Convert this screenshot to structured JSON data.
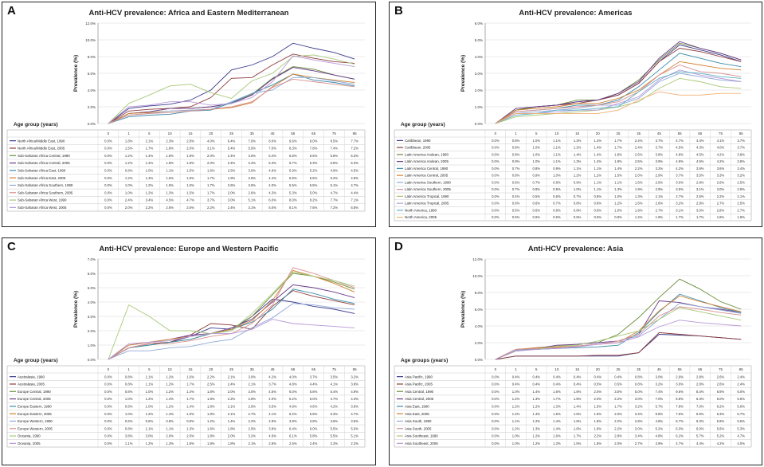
{
  "chart_data": [
    {
      "panel": "A",
      "type": "line",
      "title": "Anti-HCV prevalence: Africa and Eastern Mediterranean",
      "ylabel": "Prevalence (%)",
      "xlabel": "Age group (years)",
      "categories": [
        "0",
        "1",
        "5",
        "10",
        "15",
        "20",
        "25",
        "35",
        "45",
        "55",
        "65",
        "75",
        "85"
      ],
      "ylim": [
        0,
        12
      ],
      "yticks": [
        "0.0%",
        "2.0%",
        "4.0%",
        "6.0%",
        "8.0%",
        "10.0%",
        "12.0%"
      ],
      "series": [
        {
          "name": "North Africa/Middle East, 1990",
          "color": "#3a3a8c",
          "values": [
            0.0,
            1.8,
            2.1,
            2.3,
            2.8,
            4.0,
            6.4,
            7.0,
            8.0,
            9.6,
            9.0,
            8.5,
            7.7
          ]
        },
        {
          "name": "North Africa/Middle East, 2005",
          "color": "#8c3a3a",
          "values": [
            0.0,
            1.5,
            1.7,
            1.8,
            2.0,
            3.1,
            5.4,
            5.5,
            7.0,
            8.3,
            7.8,
            7.4,
            7.2
          ]
        },
        {
          "name": "Sub-Saharan Africa Central, 1990",
          "color": "#6a8c3a",
          "values": [
            0.0,
            1.2,
            1.4,
            1.8,
            1.8,
            2.0,
            2.4,
            3.5,
            5.4,
            6.8,
            6.5,
            5.8,
            5.3
          ]
        },
        {
          "name": "Sub-Saharan Africa Central, 2005",
          "color": "#6a3a8c",
          "values": [
            0.0,
            1.2,
            1.4,
            1.8,
            1.8,
            2.0,
            2.4,
            3.4,
            5.3,
            6.7,
            6.3,
            5.8,
            5.3
          ]
        },
        {
          "name": "Sub-Saharan Africa East, 1990",
          "color": "#3a8caa",
          "values": [
            0.0,
            0.8,
            1.0,
            1.1,
            1.5,
            1.6,
            2.5,
            3.6,
            4.6,
            5.9,
            5.2,
            4.9,
            4.5
          ]
        },
        {
          "name": "Sub-Saharan Africa East, 2005",
          "color": "#d08030",
          "values": [
            0.0,
            1.2,
            1.3,
            1.5,
            1.6,
            1.7,
            1.9,
            2.5,
            4.4,
            5.9,
            5.5,
            5.2,
            4.9
          ]
        },
        {
          "name": "Sub-Saharan Africa Southern, 1990",
          "color": "#8fa8d8",
          "values": [
            0.0,
            1.0,
            1.2,
            1.5,
            1.6,
            1.7,
            2.6,
            3.6,
            4.0,
            5.5,
            5.5,
            5.1,
            4.7
          ]
        },
        {
          "name": "Sub-Saharan Africa Southern, 2005",
          "color": "#d88f8f",
          "values": [
            0.0,
            1.0,
            1.2,
            1.3,
            1.5,
            1.7,
            2.0,
            2.6,
            4.3,
            5.3,
            5.0,
            4.7,
            4.4
          ]
        },
        {
          "name": "Sub-Saharan Africa West, 1990",
          "color": "#a8c878",
          "values": [
            0.0,
            2.4,
            3.4,
            4.5,
            4.7,
            3.7,
            3.0,
            5.1,
            6.0,
            8.0,
            8.2,
            7.7,
            7.1
          ]
        },
        {
          "name": "Sub-Saharan Africa West, 2005",
          "color": "#b898d8",
          "values": [
            0.0,
            2.0,
            2.2,
            2.6,
            2.6,
            2.2,
            2.4,
            3.1,
            5.0,
            8.1,
            7.6,
            7.2,
            6.8
          ]
        }
      ]
    },
    {
      "panel": "B",
      "type": "line",
      "title": "Anti-HCV prevalence: Americas",
      "ylabel": "Prevalence (%)",
      "xlabel": "Age group (years)",
      "categories": [
        "0",
        "1",
        "5",
        "10",
        "15",
        "20",
        "25",
        "35",
        "45",
        "55",
        "65",
        "75",
        "85"
      ],
      "ylim": [
        0,
        6
      ],
      "yticks": [
        "0.0%",
        "1.0%",
        "2.0%",
        "3.0%",
        "4.0%",
        "5.0%",
        "6.0%"
      ],
      "series": [
        {
          "name": "Caribbean, 1990",
          "color": "#3a3a8c",
          "values": [
            0.0,
            0.8,
            1.0,
            1.1,
            1.3,
            1.4,
            1.7,
            2.4,
            3.7,
            4.7,
            4.4,
            4.1,
            3.7
          ]
        },
        {
          "name": "Caribbean, 2005",
          "color": "#8c3a3a",
          "values": [
            0.0,
            0.8,
            1.0,
            1.1,
            1.2,
            1.4,
            1.7,
            2.4,
            3.7,
            4.5,
            4.3,
            4.0,
            3.7
          ]
        },
        {
          "name": "Latin America Andean, 1990",
          "color": "#6a8c3a",
          "values": [
            0.0,
            0.8,
            1.0,
            1.1,
            1.4,
            1.4,
            1.8,
            2.6,
            3.8,
            4.8,
            4.5,
            4.2,
            3.8
          ]
        },
        {
          "name": "Latin America Andean, 2005",
          "color": "#6a3a8c",
          "values": [
            0.0,
            0.9,
            1.0,
            1.1,
            1.3,
            1.4,
            1.8,
            2.5,
            3.9,
            4.9,
            4.5,
            4.2,
            3.8
          ]
        },
        {
          "name": "Latin America Central, 1990",
          "color": "#3a8caa",
          "values": [
            0.0,
            0.7,
            0.8,
            0.9,
            1.1,
            1.1,
            1.4,
            2.2,
            3.2,
            4.2,
            3.9,
            3.6,
            3.4
          ]
        },
        {
          "name": "Latin America Central, 2005",
          "color": "#d08030",
          "values": [
            0.0,
            0.8,
            0.9,
            1.0,
            1.2,
            1.2,
            1.5,
            2.0,
            2.9,
            3.7,
            3.5,
            3.3,
            3.2
          ]
        },
        {
          "name": "Latin America Southern, 1990",
          "color": "#8fa8d8",
          "values": [
            0.0,
            0.6,
            0.7,
            0.8,
            0.9,
            1.1,
            1.1,
            1.5,
            2.5,
            3.0,
            2.8,
            2.6,
            2.5
          ]
        },
        {
          "name": "Latin America Southern, 2005",
          "color": "#d88f8f",
          "values": [
            0.0,
            0.7,
            0.8,
            0.9,
            1.0,
            1.1,
            1.3,
            1.9,
            2.9,
            3.5,
            3.1,
            3.0,
            2.8
          ]
        },
        {
          "name": "Latin America Tropical, 1990",
          "color": "#a8c878",
          "values": [
            0.0,
            0.4,
            0.5,
            0.6,
            0.7,
            0.8,
            1.0,
            1.3,
            2.1,
            2.7,
            2.5,
            2.2,
            2.1
          ]
        },
        {
          "name": "Latin America Tropical, 2005",
          "color": "#b898d8",
          "values": [
            0.0,
            0.6,
            0.6,
            0.7,
            0.8,
            0.8,
            1.2,
            1.6,
            2.6,
            3.2,
            2.9,
            2.7,
            2.5
          ]
        },
        {
          "name": "North America, 1990",
          "color": "#5ab0c8",
          "values": [
            0.0,
            0.5,
            0.6,
            0.8,
            0.8,
            0.9,
            1.0,
            1.9,
            2.7,
            3.1,
            3.0,
            2.8,
            2.7
          ]
        },
        {
          "name": "North America, 2005",
          "color": "#f0b070",
          "values": [
            0.0,
            0.6,
            0.6,
            0.6,
            0.6,
            0.6,
            0.8,
            1.4,
            1.9,
            1.7,
            1.7,
            1.8,
            1.8
          ]
        }
      ]
    },
    {
      "panel": "C",
      "type": "line",
      "title": "Anti-HCV prevalence: Europe and Western Pacific",
      "ylabel": "Prevalence (%)",
      "xlabel": "Age group (years)",
      "categories": [
        "0",
        "1",
        "5",
        "10",
        "15",
        "20",
        "25",
        "35",
        "45",
        "55",
        "65",
        "75",
        "85"
      ],
      "ylim": [
        0,
        7
      ],
      "yticks": [
        "0.0%",
        "1.0%",
        "2.0%",
        "3.0%",
        "4.0%",
        "5.0%",
        "6.0%",
        "7.0%"
      ],
      "series": [
        {
          "name": "Australasia, 1990",
          "color": "#3a3a8c",
          "values": [
            0.0,
            0.8,
            1.1,
            1.2,
            1.6,
            2.2,
            2.1,
            3.0,
            4.2,
            4.0,
            3.7,
            3.5,
            3.2
          ]
        },
        {
          "name": "Australasia, 2005",
          "color": "#8c3a3a",
          "values": [
            0.0,
            0.8,
            1.1,
            1.2,
            1.7,
            2.5,
            2.4,
            2.1,
            3.7,
            4.8,
            4.4,
            4.1,
            3.8
          ]
        },
        {
          "name": "Europe Central, 1990",
          "color": "#6a8c3a",
          "values": [
            0.0,
            0.8,
            1.0,
            1.2,
            1.4,
            1.8,
            2.0,
            3.0,
            4.5,
            6.0,
            5.8,
            5.4,
            4.9
          ]
        },
        {
          "name": "Europe Central, 2005",
          "color": "#6a3a8c",
          "values": [
            0.0,
            1.0,
            1.2,
            1.4,
            1.7,
            1.8,
            2.2,
            2.8,
            4.0,
            5.2,
            5.0,
            4.7,
            4.3
          ]
        },
        {
          "name": "Europe Eastern, 1990",
          "color": "#3a8caa",
          "values": [
            0.0,
            0.8,
            1.0,
            1.2,
            1.4,
            1.8,
            2.1,
            2.6,
            3.5,
            4.9,
            4.6,
            4.2,
            3.9
          ]
        },
        {
          "name": "Europe Eastern, 2005",
          "color": "#d08030",
          "values": [
            0.0,
            1.0,
            1.2,
            1.4,
            1.6,
            1.8,
            2.1,
            2.7,
            4.1,
            6.2,
            5.8,
            5.3,
            4.7
          ]
        },
        {
          "name": "Europe Western, 1990",
          "color": "#8fa8d8",
          "values": [
            0.0,
            0.6,
            0.6,
            0.8,
            0.9,
            1.2,
            1.4,
            2.2,
            2.9,
            3.9,
            3.8,
            3.6,
            3.5
          ]
        },
        {
          "name": "Europe Western, 2005",
          "color": "#d88f8f",
          "values": [
            0.0,
            0.8,
            1.1,
            1.1,
            1.3,
            1.6,
            1.8,
            2.5,
            3.8,
            6.4,
            6.0,
            5.5,
            5.0
          ]
        },
        {
          "name": "Oceania, 1990",
          "color": "#a8c878",
          "values": [
            0.0,
            3.8,
            3.0,
            2.0,
            2.0,
            1.8,
            2.0,
            3.2,
            4.6,
            6.1,
            5.8,
            5.5,
            5.1
          ]
        },
        {
          "name": "Oceania, 2005",
          "color": "#b898d8",
          "values": [
            0.0,
            1.1,
            1.2,
            1.3,
            1.6,
            1.8,
            1.8,
            2.1,
            2.8,
            2.5,
            2.4,
            2.3,
            2.2
          ]
        }
      ]
    },
    {
      "panel": "D",
      "type": "line",
      "title": "Anti-HCV prevalence: Asia",
      "ylabel": "Prevalence (%)",
      "xlabel": "Age groups (years)",
      "categories": [
        "0",
        "1",
        "5",
        "10",
        "15",
        "20",
        "25",
        "35",
        "45",
        "55",
        "65",
        "75",
        "85"
      ],
      "ylim": [
        0,
        12
      ],
      "yticks": [
        "0.0%",
        "2.0%",
        "4.0%",
        "6.0%",
        "8.0%",
        "10.0%",
        "12.0%"
      ],
      "series": [
        {
          "name": "Asia Pacific, 1990",
          "color": "#3a3a8c",
          "values": [
            0.0,
            0.4,
            0.4,
            0.4,
            0.4,
            0.4,
            0.4,
            0.8,
            3.0,
            2.9,
            2.8,
            2.6,
            2.4
          ]
        },
        {
          "name": "Asia Pacific, 2005",
          "color": "#8c3a3a",
          "values": [
            0.0,
            0.4,
            0.4,
            0.4,
            0.4,
            0.5,
            0.5,
            0.8,
            3.2,
            3.0,
            2.8,
            2.6,
            2.4
          ]
        },
        {
          "name": "Asia Central, 1990",
          "color": "#6a8c3a",
          "values": [
            0.0,
            1.0,
            1.4,
            1.6,
            1.8,
            2.0,
            3.0,
            5.0,
            7.4,
            9.6,
            8.4,
            6.9,
            6.0
          ]
        },
        {
          "name": "Asia Central, 2005",
          "color": "#6a3a8c",
          "values": [
            0.0,
            1.2,
            1.3,
            1.7,
            1.8,
            2.0,
            2.2,
            3.0,
            7.0,
            6.8,
            6.3,
            6.0,
            5.6
          ]
        },
        {
          "name": "Asia East, 1990",
          "color": "#3a8caa",
          "values": [
            0.0,
            1.2,
            1.2,
            1.3,
            1.4,
            1.5,
            1.7,
            3.2,
            5.7,
            7.8,
            7.0,
            6.2,
            5.6
          ]
        },
        {
          "name": "Asia East, 2005",
          "color": "#d08030",
          "values": [
            0.0,
            1.2,
            1.4,
            1.5,
            1.6,
            1.8,
            2.0,
            3.4,
            5.8,
            7.6,
            6.9,
            6.3,
            5.7
          ]
        },
        {
          "name": "Asia South, 1990",
          "color": "#8fa8d8",
          "values": [
            0.0,
            1.1,
            1.2,
            1.4,
            1.6,
            1.8,
            2.2,
            2.8,
            4.8,
            6.7,
            6.3,
            5.9,
            5.5
          ]
        },
        {
          "name": "Asia South, 2005",
          "color": "#d88f8f",
          "values": [
            0.0,
            1.2,
            1.3,
            1.4,
            1.6,
            1.8,
            2.2,
            3.0,
            5.2,
            6.3,
            6.0,
            5.6,
            5.3
          ]
        },
        {
          "name": "Asia Southeast, 1990",
          "color": "#a8c878",
          "values": [
            0.0,
            1.0,
            1.2,
            1.6,
            1.7,
            2.2,
            2.8,
            3.4,
            4.8,
            6.2,
            5.7,
            5.2,
            4.7
          ]
        },
        {
          "name": "Asia Southeast, 2005",
          "color": "#b898d8",
          "values": [
            0.0,
            1.0,
            1.2,
            1.3,
            1.5,
            1.8,
            2.0,
            2.7,
            3.9,
            4.7,
            4.4,
            4.2,
            4.0
          ]
        }
      ]
    }
  ]
}
